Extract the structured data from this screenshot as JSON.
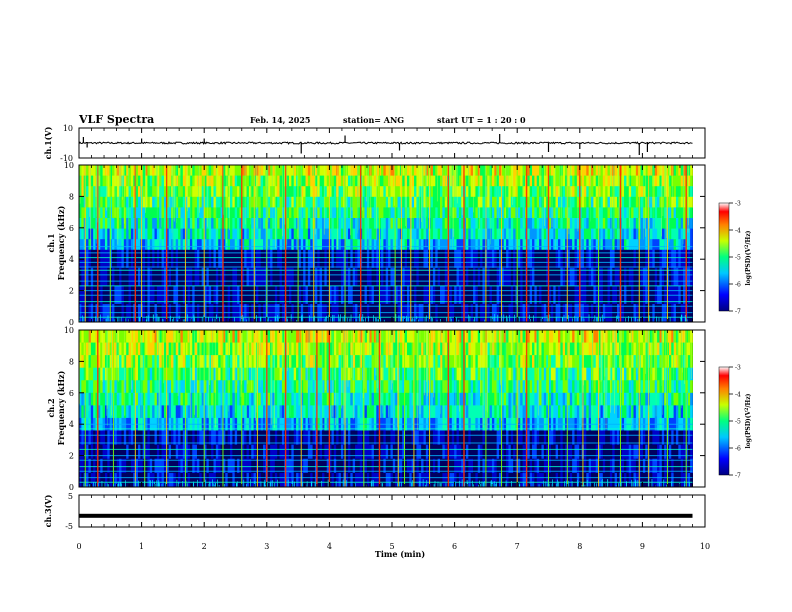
{
  "header": {
    "title": "VLF Spectra",
    "date": "Feb. 14, 2025",
    "station": "station= ANG",
    "start": "start  UT =   1 : 20 : 0"
  },
  "chart_data": [
    {
      "type": "line",
      "panel": "ch1-waveform",
      "ylabel": "ch.1(V)",
      "ylim": [
        -10,
        10
      ],
      "y_ticks": [
        "10",
        "-10"
      ],
      "baseline_value": 0,
      "spikes": [
        {
          "t": 0.07,
          "v": 4
        },
        {
          "t": 0.13,
          "v": -3
        },
        {
          "t": 1.0,
          "v": 3
        },
        {
          "t": 2.0,
          "v": 3
        },
        {
          "t": 3.55,
          "v": -7
        },
        {
          "t": 4.25,
          "v": 5
        },
        {
          "t": 5.12,
          "v": -5
        },
        {
          "t": 6.72,
          "v": 6
        },
        {
          "t": 7.5,
          "v": -6
        },
        {
          "t": 8.0,
          "v": -4
        },
        {
          "t": 8.95,
          "v": -8
        },
        {
          "t": 9.08,
          "v": -6
        }
      ]
    },
    {
      "type": "heatmap",
      "panel": "ch1-spectrogram",
      "ylabel": "ch.1\nFrequency (kHz)",
      "ylim": [
        0,
        10
      ],
      "y_ticks": [
        "0",
        "2",
        "4",
        "6",
        "8",
        "10"
      ],
      "colorbar": {
        "label": "log(PSD)(V²/Hz)",
        "range": [
          -7,
          -3
        ],
        "ticks": [
          "-3",
          "-4",
          "-5",
          "-6",
          "-7"
        ]
      },
      "dark_band_top_khz": 4.6,
      "horizontal_lines_khz": [
        0.3,
        0.6,
        1.0,
        1.3,
        1.7,
        2.0,
        2.3,
        2.6,
        3.0,
        3.3,
        3.5,
        3.8,
        4.1,
        4.4,
        4.8
      ],
      "sferics_min": [
        0.1,
        0.3,
        0.5,
        0.9,
        1.0,
        1.4,
        1.7,
        2.0,
        2.3,
        2.6,
        2.8,
        3.0,
        3.3,
        3.5,
        3.75,
        4.0,
        4.25,
        4.5,
        4.8,
        5.05,
        5.15,
        5.3,
        5.6,
        5.9,
        6.15,
        6.5,
        6.75,
        7.0,
        7.15,
        7.5,
        7.8,
        8.0,
        8.3,
        8.65,
        8.95,
        9.1,
        9.4,
        9.7
      ]
    },
    {
      "type": "heatmap",
      "panel": "ch2-spectrogram",
      "ylabel": "ch.2\nFrequency (kHz)",
      "ylim": [
        0,
        10
      ],
      "y_ticks": [
        "0",
        "2",
        "4",
        "6",
        "8",
        "10"
      ],
      "colorbar": {
        "label": "log(PSD)(V²/Hz)",
        "range": [
          -7,
          -3
        ],
        "ticks": [
          "-3",
          "-4",
          "-5",
          "-6",
          "-7"
        ]
      },
      "dark_band_top_khz": 3.6,
      "horizontal_lines_khz": [
        0.3,
        0.6,
        1.0,
        1.3,
        1.7,
        2.0,
        2.4,
        2.8,
        3.3,
        3.7,
        4.0
      ],
      "sferics_min": [
        0.1,
        0.3,
        0.55,
        0.9,
        1.05,
        1.4,
        1.7,
        2.0,
        2.3,
        2.6,
        2.85,
        3.0,
        3.3,
        3.55,
        3.8,
        4.0,
        4.25,
        4.55,
        4.8,
        5.1,
        5.2,
        5.35,
        5.6,
        5.9,
        6.15,
        6.5,
        6.75,
        7.0,
        7.15,
        7.5,
        7.8,
        8.05,
        8.3,
        8.65,
        8.95,
        9.1,
        9.4,
        9.7
      ]
    },
    {
      "type": "line",
      "panel": "ch3-waveform",
      "ylabel": "ch.3(V)",
      "ylim": [
        -5,
        5
      ],
      "y_ticks": [
        "5",
        "-5"
      ],
      "constant_value": -1.5
    }
  ],
  "x_axis": {
    "label": "Time (min)",
    "range": [
      0,
      10
    ],
    "ticks": [
      "0",
      "1",
      "2",
      "3",
      "4",
      "5",
      "6",
      "7",
      "8",
      "9",
      "10"
    ]
  }
}
